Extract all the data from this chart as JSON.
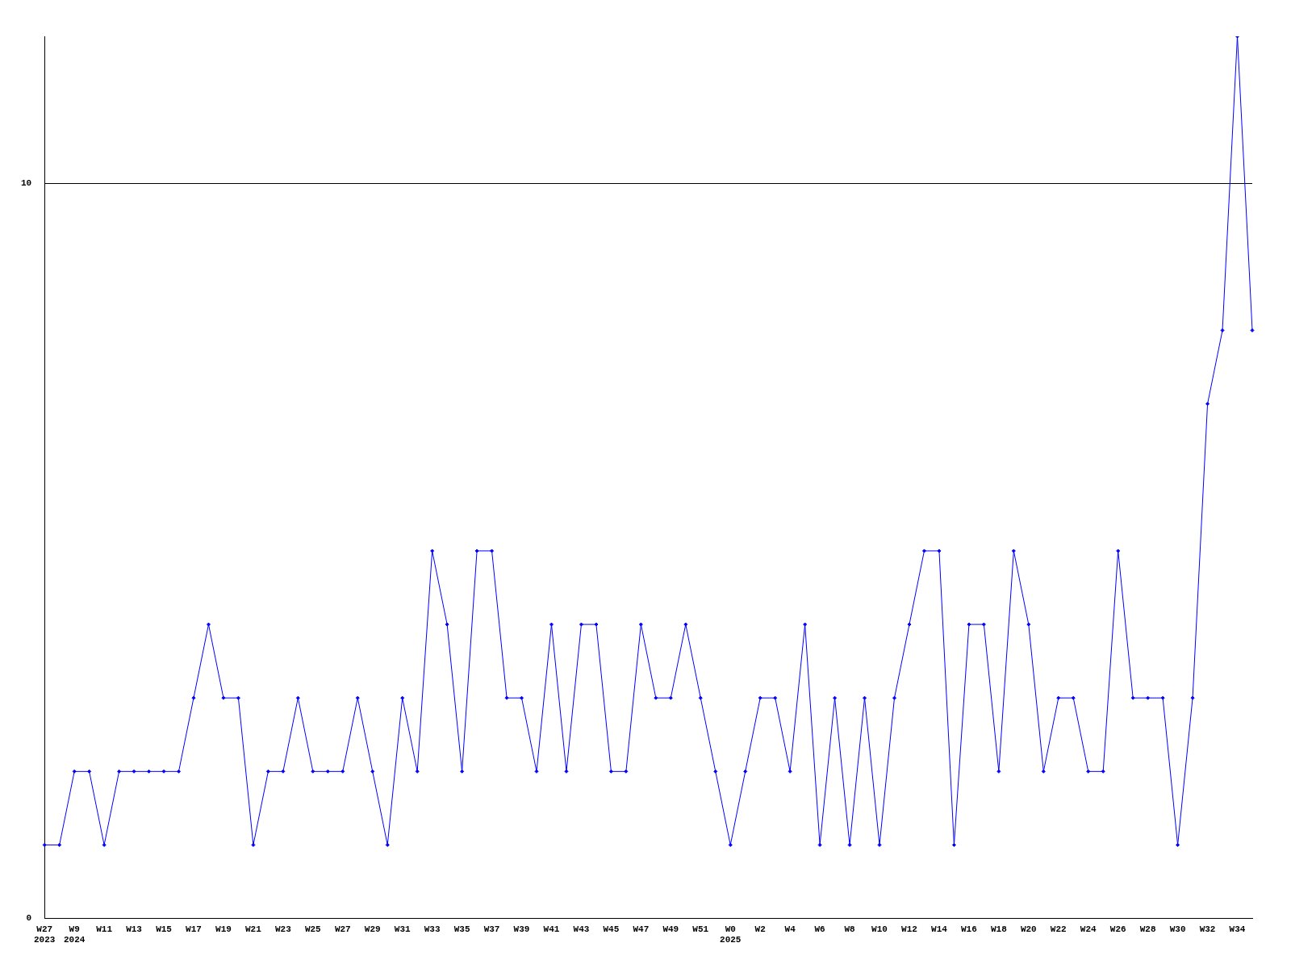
{
  "chart_data": {
    "type": "line",
    "categories": [
      "W27\n2023",
      null,
      "W9\n2024",
      null,
      "W11",
      null,
      "W13",
      null,
      "W15",
      null,
      "W17",
      null,
      "W19",
      null,
      "W21",
      null,
      "W23",
      null,
      "W25",
      null,
      "W27",
      null,
      "W29",
      null,
      "W31",
      null,
      "W33",
      null,
      "W35",
      null,
      "W37",
      null,
      "W39",
      null,
      "W41",
      null,
      "W43",
      null,
      "W45",
      null,
      "W47",
      null,
      "W49",
      null,
      "W51",
      null,
      "W0\n2025",
      null,
      "W2",
      null,
      "W4",
      null,
      "W6",
      null,
      "W8",
      null,
      "W10",
      null,
      "W12",
      null,
      "W14",
      null,
      "W16",
      null,
      "W18",
      null,
      "W20",
      null,
      "W22",
      null,
      "W24",
      null,
      "W26",
      null,
      "W28",
      null,
      "W30",
      null,
      "W32",
      null,
      "W34",
      null
    ],
    "series": [
      {
        "color": "#0000ff",
        "values": [
          1,
          1,
          2,
          2,
          1,
          2,
          2,
          2,
          2,
          2,
          3,
          4,
          3,
          3,
          1,
          2,
          2,
          3,
          2,
          2,
          2,
          3,
          2,
          1,
          3,
          2,
          5,
          4,
          2,
          5,
          5,
          3,
          3,
          2,
          4,
          2,
          4,
          4,
          2,
          2,
          4,
          3,
          3,
          4,
          3,
          2,
          1,
          2,
          3,
          3,
          2,
          4,
          1,
          3,
          1,
          3,
          1,
          3,
          4,
          5,
          5,
          1,
          4,
          4,
          2,
          5,
          4,
          2,
          3,
          3,
          2,
          2,
          5,
          3,
          3,
          3,
          1,
          3,
          7,
          8,
          12,
          8
        ]
      }
    ],
    "ylim": [
      0,
      12
    ],
    "yticks": [
      0,
      10
    ],
    "grid": "y",
    "legend": false,
    "marker": "diamond",
    "line_style": "solid"
  }
}
